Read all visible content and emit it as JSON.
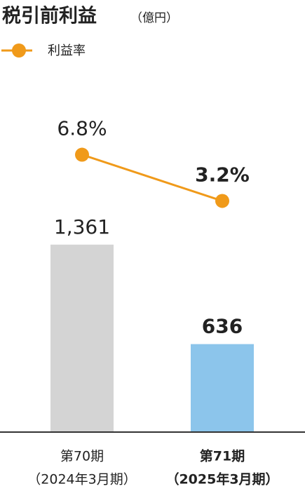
{
  "chart_data": {
    "type": "combo",
    "title": "税引前利益",
    "unit": "（億円）",
    "categories": [
      [
        "第70期",
        "（2024年3月期）"
      ],
      [
        "第71期",
        "（2025年3月期）"
      ]
    ],
    "series": [
      {
        "type": "bar",
        "colors": [
          "#d4d4d4",
          "#8cc5eb"
        ],
        "values": [
          1361,
          636
        ],
        "value_labels": [
          "1,361",
          "636"
        ]
      },
      {
        "type": "line",
        "name": "利益率",
        "axis": "y2",
        "color": "#f09a1a",
        "values": [
          6.8,
          3.2
        ],
        "value_labels": [
          "6.8%",
          "3.2%"
        ]
      }
    ],
    "ylim": [
      0,
      1600
    ],
    "y2lim": [
      0,
      10
    ]
  }
}
